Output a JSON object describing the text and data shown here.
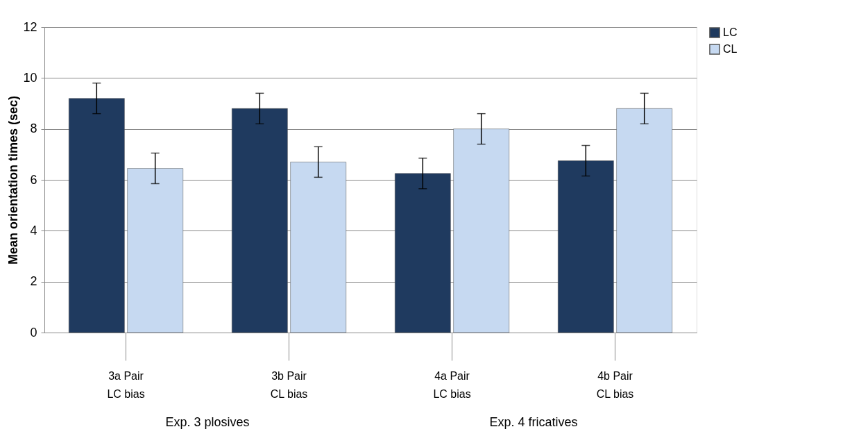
{
  "chart_data": {
    "type": "bar",
    "ylabel": "Mean orientation times (sec)",
    "categories": [
      "3a Pair\nLC bias",
      "3b Pair\nCL bias",
      "4a Pair\nLC bias",
      "4b Pair\nCL bias"
    ],
    "series": [
      {
        "name": "LC",
        "color": "#1f3a5f",
        "values": [
          9.2,
          8.8,
          6.25,
          6.75
        ],
        "errors": [
          0.6,
          0.6,
          0.6,
          0.6
        ]
      },
      {
        "name": "CL",
        "color": "#c6d9f1",
        "values": [
          6.45,
          6.7,
          8.0,
          8.8
        ],
        "errors": [
          0.6,
          0.6,
          0.6,
          0.6
        ]
      }
    ],
    "ylim": [
      0,
      12
    ],
    "yticks": [
      0,
      2,
      4,
      6,
      8,
      10,
      12
    ],
    "grid": "y",
    "legend": "right",
    "annotations": [
      "Exp. 3 plosives",
      "Exp. 4 fricatives"
    ]
  }
}
